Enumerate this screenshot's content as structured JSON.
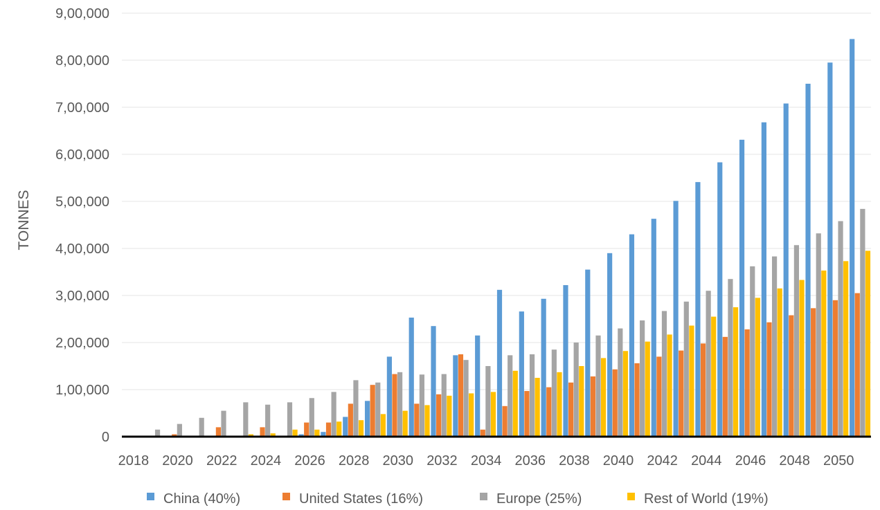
{
  "chart_data": {
    "type": "bar",
    "title": "",
    "xlabel": "",
    "ylabel": "TONNES",
    "ylim": [
      0,
      900000
    ],
    "yticks": [
      "0",
      "1,00,000",
      "2,00,000",
      "3,00,000",
      "4,00,000",
      "5,00,000",
      "6,00,000",
      "7,00,000",
      "8,00,000",
      "9,00,000"
    ],
    "xtick_labels": [
      "2018",
      "2020",
      "2022",
      "2024",
      "2026",
      "2028",
      "2030",
      "2032",
      "2034",
      "2036",
      "2038",
      "2040",
      "2042",
      "2044",
      "2046",
      "2048",
      "2050"
    ],
    "categories": [
      "2018",
      "2019",
      "2020",
      "2021",
      "2022",
      "2023",
      "2024",
      "2025",
      "2026",
      "2027",
      "2028",
      "2029",
      "2030",
      "2031",
      "2032",
      "2033",
      "2034",
      "2035",
      "2036",
      "2037",
      "2038",
      "2039",
      "2040",
      "2041",
      "2042",
      "2043",
      "2044",
      "2045",
      "2046",
      "2047",
      "2048",
      "2049",
      "2050",
      "2051"
    ],
    "grid": true,
    "legend_position": "bottom",
    "series": [
      {
        "name": "China (40%)",
        "color": "#5B9BD5",
        "values": [
          0,
          0,
          0,
          0,
          0,
          0,
          0,
          0,
          5000,
          10000,
          42000,
          76000,
          170000,
          253000,
          235000,
          173000,
          215000,
          312000,
          266000,
          293000,
          322000,
          355000,
          390000,
          430000,
          463000,
          501000,
          541000,
          583000,
          631000,
          668000,
          708000,
          750000,
          795000,
          845000
        ]
      },
      {
        "name": "United States (16%)",
        "color": "#ED7D31",
        "values": [
          0,
          0,
          5000,
          0,
          20000,
          0,
          20000,
          0,
          30000,
          30000,
          70000,
          110000,
          133000,
          70000,
          90000,
          175000,
          15000,
          65000,
          97000,
          105000,
          115000,
          128000,
          143000,
          156000,
          170000,
          183000,
          198000,
          212000,
          228000,
          243000,
          258000,
          273000,
          290000,
          305000
        ]
      },
      {
        "name": "Europe (25%)",
        "color": "#A5A5A5",
        "values": [
          0,
          15000,
          27000,
          40000,
          55000,
          73000,
          68000,
          73000,
          82000,
          95000,
          120000,
          115000,
          137000,
          132000,
          133000,
          163000,
          150000,
          173000,
          175000,
          185000,
          200000,
          215000,
          230000,
          247000,
          267000,
          287000,
          310000,
          335000,
          362000,
          383000,
          407000,
          432000,
          458000,
          484000
        ]
      },
      {
        "name": "Rest of World (19%)",
        "color": "#FFC000",
        "values": [
          0,
          0,
          0,
          0,
          0,
          5000,
          7000,
          15000,
          15000,
          32000,
          35000,
          48000,
          55000,
          67000,
          87000,
          92000,
          95000,
          140000,
          125000,
          137000,
          150000,
          167000,
          182000,
          202000,
          217000,
          236000,
          255000,
          275000,
          295000,
          315000,
          333000,
          353000,
          373000,
          395000
        ]
      }
    ]
  }
}
